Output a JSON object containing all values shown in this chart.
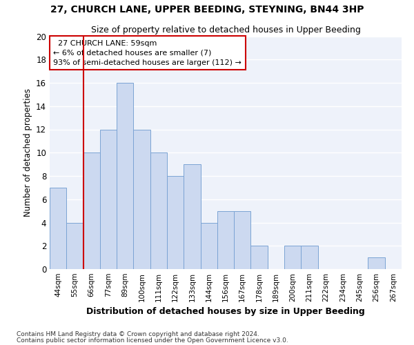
{
  "title1": "27, CHURCH LANE, UPPER BEEDING, STEYNING, BN44 3HP",
  "title2": "Size of property relative to detached houses in Upper Beeding",
  "xlabel": "Distribution of detached houses by size in Upper Beeding",
  "ylabel": "Number of detached properties",
  "footnote1": "Contains HM Land Registry data © Crown copyright and database right 2024.",
  "footnote2": "Contains public sector information licensed under the Open Government Licence v3.0.",
  "categories": [
    "44sqm",
    "55sqm",
    "66sqm",
    "77sqm",
    "89sqm",
    "100sqm",
    "111sqm",
    "122sqm",
    "133sqm",
    "144sqm",
    "156sqm",
    "167sqm",
    "178sqm",
    "189sqm",
    "200sqm",
    "211sqm",
    "222sqm",
    "234sqm",
    "245sqm",
    "256sqm",
    "267sqm"
  ],
  "values": [
    7,
    4,
    10,
    12,
    16,
    12,
    10,
    8,
    9,
    4,
    5,
    5,
    2,
    0,
    2,
    2,
    0,
    0,
    0,
    1,
    0
  ],
  "bar_color": "#ccd9f0",
  "bar_edge_color": "#7aa3d4",
  "ylim": [
    0,
    20
  ],
  "yticks": [
    0,
    2,
    4,
    6,
    8,
    10,
    12,
    14,
    16,
    18,
    20
  ],
  "annotation_box_text": "  27 CHURCH LANE: 59sqm\n← 6% of detached houses are smaller (7)\n93% of semi-detached houses are larger (112) →",
  "annotation_box_color": "#cc0000",
  "red_line_x": 1.5,
  "bg_color": "#eef2fa"
}
